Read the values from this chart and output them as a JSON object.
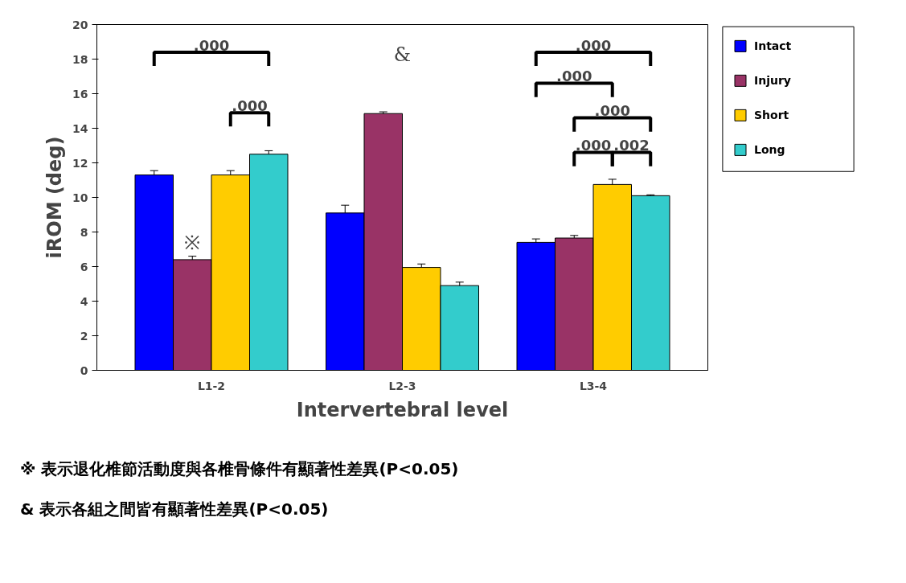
{
  "chart_data": {
    "type": "bar",
    "xlabel": "Intervertebral level",
    "ylabel": "iROM (deg)",
    "categories": [
      "L1-2",
      "L2-3",
      "L3-4"
    ],
    "series": [
      {
        "name": "Intact",
        "color": "#0000ff",
        "values": [
          11.3,
          9.1,
          7.4
        ],
        "errors": [
          0.25,
          0.45,
          0.2
        ]
      },
      {
        "name": "Injury",
        "color": "#993366",
        "values": [
          6.4,
          14.85,
          7.65
        ],
        "errors": [
          0.2,
          0.1,
          0.15
        ]
      },
      {
        "name": "Short",
        "color": "#ffcc00",
        "values": [
          11.3,
          5.95,
          10.75
        ],
        "errors": [
          0.25,
          0.2,
          0.3
        ]
      },
      {
        "name": "Long",
        "color": "#33cccc",
        "values": [
          12.5,
          4.9,
          10.1
        ],
        "errors": [
          0.2,
          0.2,
          0.05
        ]
      }
    ],
    "ylim": [
      0,
      20
    ],
    "yticks": [
      0,
      2,
      4,
      6,
      8,
      10,
      12,
      14,
      16,
      18,
      20
    ],
    "grid": false,
    "legend": "right",
    "annotations": [
      ".000",
      ".000",
      "※",
      "&",
      ".000",
      ".000",
      ".000",
      ".000",
      ".002",
      "※ 表示退化椎節活動度與各椎骨條件有顯著性差異(P<0.05)",
      "& 表示各組之間皆有顯著性差異(P<0.05)"
    ]
  }
}
